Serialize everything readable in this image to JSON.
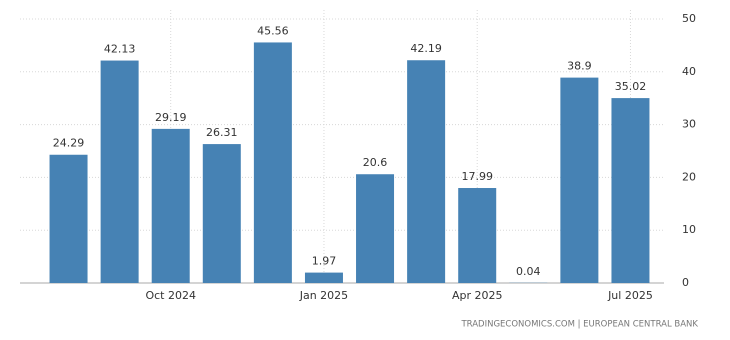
{
  "chart_data": {
    "type": "bar",
    "categories": [
      null,
      null,
      "Oct 2024",
      null,
      null,
      "Jan 2025",
      null,
      null,
      "Apr 2025",
      null,
      null,
      "Jul 2025"
    ],
    "values": [
      24.29,
      42.13,
      29.19,
      26.31,
      45.56,
      1.97,
      20.6,
      42.19,
      17.99,
      0.04,
      38.9,
      35.02
    ],
    "color": "#4682b4",
    "ylim": [
      0,
      50
    ],
    "yticks": [
      0,
      10,
      20,
      30,
      40,
      50
    ],
    "grid": true,
    "source": "TRADINGECONOMICS.COM | EUROPEAN CENTRAL BANK"
  }
}
